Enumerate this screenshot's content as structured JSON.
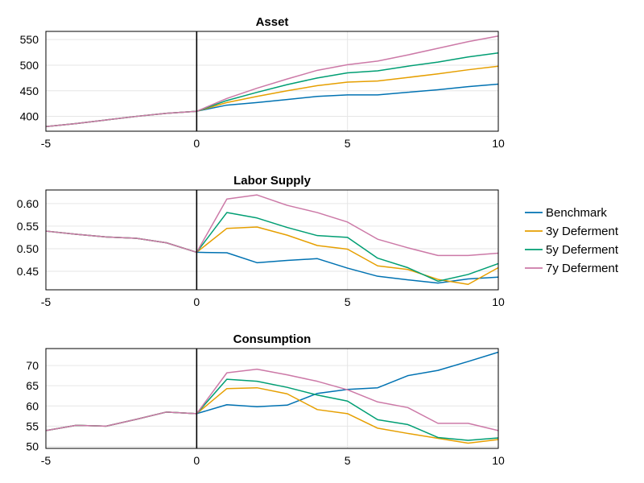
{
  "chart_data": [
    {
      "type": "line",
      "title": "Asset",
      "xlim": [
        -5,
        10
      ],
      "ylim": [
        371,
        566
      ],
      "xticks": [
        "-5",
        "0",
        "5",
        "10"
      ],
      "yticks": [
        400,
        450,
        500,
        550
      ],
      "x": [
        -5,
        -4,
        -3,
        -2,
        -1,
        0,
        1,
        2,
        3,
        4,
        5,
        6,
        7,
        8,
        9,
        10
      ],
      "series": [
        {
          "name": "Benchmark",
          "color": "#0072b2",
          "values": [
            380,
            386,
            393,
            400,
            406,
            410,
            422,
            427,
            433,
            439,
            442,
            442,
            447,
            452,
            458,
            463
          ]
        },
        {
          "name": "3y Deferment",
          "color": "#e69f00",
          "values": [
            380,
            386,
            393,
            400,
            406,
            410,
            427,
            439,
            450,
            460,
            467,
            469,
            476,
            483,
            491,
            498
          ]
        },
        {
          "name": "5y Deferment",
          "color": "#009e73",
          "values": [
            380,
            386,
            393,
            400,
            406,
            410,
            431,
            447,
            462,
            475,
            485,
            489,
            498,
            506,
            516,
            524
          ]
        },
        {
          "name": "7y Deferment",
          "color": "#cc79a7",
          "values": [
            380,
            386,
            393,
            400,
            406,
            410,
            435,
            455,
            473,
            490,
            501,
            508,
            520,
            533,
            546,
            557
          ]
        }
      ]
    },
    {
      "type": "line",
      "title": "Labor Supply",
      "xlim": [
        -5,
        10
      ],
      "ylim": [
        0.409,
        0.63
      ],
      "xticks": [
        "-5",
        "0",
        "5",
        "10"
      ],
      "yticks": [
        0.45,
        0.5,
        0.55,
        0.6
      ],
      "ytick_labels": [
        "0.45",
        "0.50",
        "0.55",
        "0.60"
      ],
      "x": [
        -5,
        -4,
        -3,
        -2,
        -1,
        0,
        1,
        2,
        3,
        4,
        5,
        6,
        7,
        8,
        9,
        10
      ],
      "series": [
        {
          "name": "Benchmark",
          "color": "#0072b2",
          "values": [
            0.539,
            0.532,
            0.526,
            0.523,
            0.513,
            0.492,
            0.491,
            0.469,
            0.474,
            0.478,
            0.457,
            0.439,
            0.431,
            0.424,
            0.433,
            0.437
          ]
        },
        {
          "name": "3y Deferment",
          "color": "#e69f00",
          "values": [
            0.539,
            0.532,
            0.526,
            0.523,
            0.513,
            0.492,
            0.545,
            0.548,
            0.53,
            0.507,
            0.499,
            0.462,
            0.454,
            0.432,
            0.421,
            0.458
          ]
        },
        {
          "name": "5y Deferment",
          "color": "#009e73",
          "values": [
            0.539,
            0.532,
            0.526,
            0.523,
            0.513,
            0.492,
            0.58,
            0.568,
            0.547,
            0.529,
            0.525,
            0.479,
            0.458,
            0.428,
            0.443,
            0.467
          ]
        },
        {
          "name": "7y Deferment",
          "color": "#cc79a7",
          "values": [
            0.539,
            0.532,
            0.526,
            0.523,
            0.513,
            0.492,
            0.61,
            0.619,
            0.596,
            0.58,
            0.559,
            0.521,
            0.502,
            0.485,
            0.485,
            0.49
          ]
        }
      ]
    },
    {
      "type": "line",
      "title": "Consumption",
      "xlim": [
        -5,
        10
      ],
      "ylim": [
        49.5,
        74.2
      ],
      "xticks": [
        "-5",
        "0",
        "5",
        "10"
      ],
      "yticks": [
        50,
        55,
        60,
        65,
        70
      ],
      "x": [
        -5,
        -4,
        -3,
        -2,
        -1,
        0,
        1,
        2,
        3,
        4,
        5,
        6,
        7,
        8,
        9,
        10
      ],
      "series": [
        {
          "name": "Benchmark",
          "color": "#0072b2",
          "values": [
            53.9,
            55.2,
            55.0,
            56.7,
            58.5,
            58.1,
            60.3,
            59.8,
            60.2,
            63.1,
            64.1,
            64.5,
            67.5,
            68.8,
            71.0,
            73.3
          ]
        },
        {
          "name": "3y Deferment",
          "color": "#e69f00",
          "values": [
            53.9,
            55.2,
            55.0,
            56.7,
            58.5,
            58.1,
            64.3,
            64.5,
            63.0,
            59.1,
            58.1,
            54.5,
            53.2,
            52.0,
            50.8,
            51.7
          ]
        },
        {
          "name": "5y Deferment",
          "color": "#009e73",
          "values": [
            53.9,
            55.2,
            55.0,
            56.7,
            58.5,
            58.1,
            66.6,
            66.1,
            64.6,
            62.7,
            61.2,
            56.6,
            55.4,
            52.2,
            51.5,
            52.1
          ]
        },
        {
          "name": "7y Deferment",
          "color": "#cc79a7",
          "values": [
            53.9,
            55.2,
            55.0,
            56.7,
            58.5,
            58.1,
            68.2,
            69.1,
            67.7,
            66.1,
            64.0,
            61.0,
            59.6,
            55.7,
            55.7,
            53.9
          ]
        }
      ]
    }
  ],
  "legend": {
    "placement": "right",
    "items": [
      {
        "label": "Benchmark",
        "color": "#0072b2"
      },
      {
        "label": "3y Deferment",
        "color": "#e69f00"
      },
      {
        "label": "5y Deferment",
        "color": "#009e73"
      },
      {
        "label": "7y Deferment",
        "color": "#cc79a7"
      }
    ]
  }
}
